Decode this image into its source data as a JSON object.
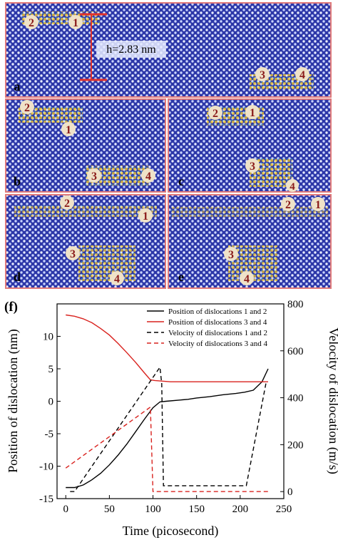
{
  "panels": {
    "labels": [
      "(a)",
      "(b)",
      "(c)",
      "(d)",
      "(e)"
    ],
    "a": {
      "letter": "a",
      "markers": [
        "2",
        "1",
        "3",
        "4"
      ],
      "measure": "h=2.83 nm"
    },
    "b": {
      "letter": "b",
      "markers": [
        "2",
        "1",
        "3",
        "4"
      ]
    },
    "c": {
      "letter": "c",
      "markers": [
        "2",
        "1",
        "3",
        "4"
      ]
    },
    "d": {
      "letter": "d",
      "markers": [
        "2",
        "1",
        "3",
        "4"
      ]
    },
    "e": {
      "letter": "e",
      "markers": [
        "2",
        "1",
        "3",
        "4"
      ]
    },
    "colors": {
      "lattice": "#2c37a8",
      "atom": "#e8ecff",
      "frame": "#e07a7a",
      "defect": "#ffd21f"
    }
  },
  "chart_data": {
    "type": "line",
    "panel_label": "(f)",
    "xlabel": "Time (picosecond)",
    "ylabel_left": "Position of dislocation (nm)",
    "ylabel_right": "Velocity of dislocation (m/s)",
    "xlim": [
      -10,
      250
    ],
    "ylim_left": [
      -15,
      15
    ],
    "ylim_right": [
      -30,
      800
    ],
    "x_ticks": [
      0,
      50,
      100,
      150,
      200,
      250
    ],
    "y_ticks_left": [
      -15,
      -10,
      -5,
      0,
      5,
      10
    ],
    "y_ticks_right": [
      0,
      200,
      400,
      600,
      800
    ],
    "legend_position": "top-right",
    "series": [
      {
        "name": "Position of dislocations 1 and 2",
        "axis": "left",
        "color": "#000000",
        "dash": "solid",
        "x": [
          0,
          10,
          20,
          30,
          40,
          50,
          60,
          70,
          80,
          90,
          100,
          108,
          115,
          140,
          150,
          165,
          180,
          195,
          205,
          215,
          225,
          232
        ],
        "y": [
          -13.3,
          -13.3,
          -12.9,
          -12.1,
          -11.1,
          -9.8,
          -8.3,
          -6.6,
          -4.7,
          -2.8,
          -1.0,
          -0.1,
          0.0,
          0.3,
          0.5,
          0.7,
          1.0,
          1.2,
          1.4,
          1.7,
          3.0,
          5.0
        ]
      },
      {
        "name": "Position of dislocations 3 and 4",
        "axis": "left",
        "color": "#d9221e",
        "dash": "solid",
        "x": [
          0,
          10,
          20,
          30,
          40,
          50,
          60,
          70,
          80,
          90,
          97,
          102,
          120,
          150,
          180,
          210,
          232
        ],
        "y": [
          13.3,
          13.1,
          12.7,
          12.1,
          11.2,
          10.2,
          8.9,
          7.5,
          6.0,
          4.4,
          3.3,
          3.2,
          3.0,
          3.0,
          3.0,
          3.0,
          3.0
        ]
      },
      {
        "name": "Velocity of dislocations 1 and 2",
        "axis": "right",
        "color": "#000000",
        "dash": "dashed",
        "x": [
          5,
          10,
          108,
          110,
          112,
          207,
          230
        ],
        "y": [
          0,
          0,
          530,
          460,
          25,
          25,
          470
        ]
      },
      {
        "name": "Velocity of dislocations 3 and 4",
        "axis": "right",
        "color": "#d9221e",
        "dash": "dashed",
        "x": [
          0,
          97,
          100,
          235
        ],
        "y": [
          100,
          360,
          0,
          0
        ]
      }
    ]
  }
}
